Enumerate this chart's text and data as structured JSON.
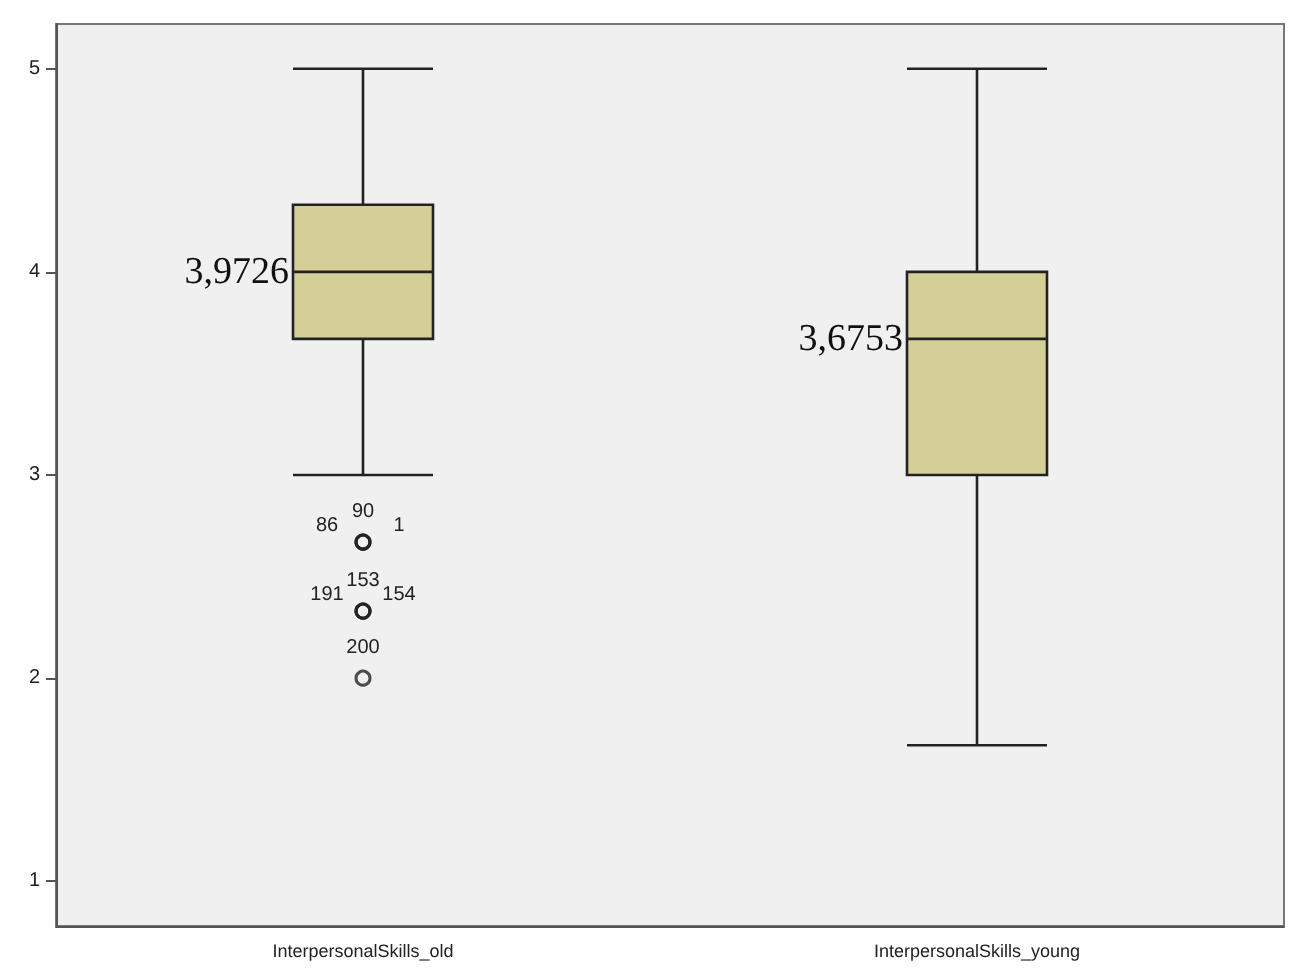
{
  "chart_data": {
    "type": "box",
    "categories": [
      "InterpersonalSkills_old",
      "InterpersonalSkills_young"
    ],
    "series": [
      {
        "color": "#d4cf96",
        "boxes": [
          {
            "low": 3.0,
            "q1": 3.67,
            "median": 4.0,
            "q3": 4.33,
            "high": 5.0
          },
          {
            "low": 1.67,
            "q1": 3.0,
            "median": 3.67,
            "q3": 4.0,
            "high": 5.0
          }
        ]
      },
      {
        "type": "scatter",
        "color": "#222222",
        "x": [
          "InterpersonalSkills_old",
          "InterpersonalSkills_old",
          "InterpersonalSkills_old",
          "InterpersonalSkills_old",
          "InterpersonalSkills_old",
          "InterpersonalSkills_old",
          "InterpersonalSkills_old"
        ],
        "values": [
          2.67,
          2.67,
          2.67,
          2.33,
          2.33,
          2.33,
          2.0
        ]
      }
    ],
    "ylim": [
      0.78,
      5.22
    ],
    "yticks": [
      1,
      2,
      3,
      4,
      5
    ],
    "grid": false,
    "annotations": [
      {
        "text": "3,9726",
        "x": "InterpersonalSkills_old",
        "y": 4.0
      },
      {
        "text": "3,6753",
        "x": "InterpersonalSkills_young",
        "y": 3.67
      },
      {
        "text": "90",
        "x": "InterpersonalSkills_old",
        "y": 2.67
      },
      {
        "text": "86",
        "x": "InterpersonalSkills_old",
        "y": 2.67
      },
      {
        "text": "1",
        "x": "InterpersonalSkills_old",
        "y": 2.67
      },
      {
        "text": "153",
        "x": "InterpersonalSkills_old",
        "y": 2.33
      },
      {
        "text": "191",
        "x": "InterpersonalSkills_old",
        "y": 2.33
      },
      {
        "text": "154",
        "x": "InterpersonalSkills_old",
        "y": 2.33
      },
      {
        "text": "200",
        "x": "InterpersonalSkills_old",
        "y": 2.0
      }
    ]
  }
}
